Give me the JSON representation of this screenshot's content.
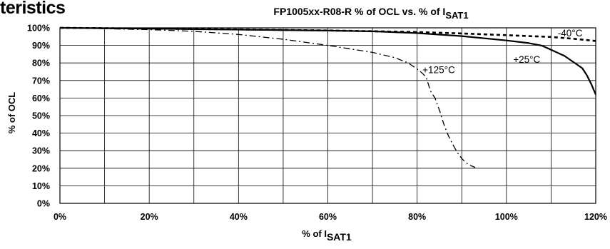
{
  "page": {
    "heading": "teristics"
  },
  "chart_data": {
    "type": "line",
    "title_main": "FP1005xx-R08-R  % of OCL vs. % of I",
    "title_sub": "SAT1",
    "xlabel_main": "% of I",
    "xlabel_sub": "SAT1",
    "ylabel": "% of OCL",
    "xlim": [
      0,
      120
    ],
    "ylim": [
      0,
      100
    ],
    "x_ticks": [
      {
        "value": 0,
        "label": "0%"
      },
      {
        "value": 20,
        "label": "20%"
      },
      {
        "value": 40,
        "label": "40%"
      },
      {
        "value": 60,
        "label": "60%"
      },
      {
        "value": 80,
        "label": "80%"
      },
      {
        "value": 100,
        "label": "100%"
      },
      {
        "value": 120,
        "label": "120%"
      }
    ],
    "x_gridlines": [
      0,
      10,
      20,
      30,
      40,
      50,
      60,
      70,
      80,
      90,
      100,
      110,
      120
    ],
    "y_ticks": [
      {
        "value": 0,
        "label": "0%"
      },
      {
        "value": 10,
        "label": "10%"
      },
      {
        "value": 20,
        "label": "20%"
      },
      {
        "value": 30,
        "label": "30%"
      },
      {
        "value": 40,
        "label": "40%"
      },
      {
        "value": 50,
        "label": "50%"
      },
      {
        "value": 60,
        "label": "60%"
      },
      {
        "value": 70,
        "label": "70%"
      },
      {
        "value": 80,
        "label": "80%"
      },
      {
        "value": 90,
        "label": "90%"
      },
      {
        "value": 100,
        "label": "100%"
      }
    ],
    "grid": true,
    "series": [
      {
        "name": "-40°C",
        "style": "dotted-heavy",
        "points": [
          [
            0,
            100
          ],
          [
            20,
            99.6
          ],
          [
            40,
            99.1
          ],
          [
            60,
            98.5
          ],
          [
            80,
            97.6
          ],
          [
            90,
            96.8
          ],
          [
            100,
            95.8
          ],
          [
            110,
            94.8
          ],
          [
            115,
            93.8
          ],
          [
            120,
            92.5
          ]
        ],
        "label_at": [
          111.5,
          97
        ]
      },
      {
        "name": "+25°C",
        "style": "solid",
        "points": [
          [
            0,
            100
          ],
          [
            20,
            99.5
          ],
          [
            40,
            99.0
          ],
          [
            60,
            98.4
          ],
          [
            70,
            98.0
          ],
          [
            80,
            97.0
          ],
          [
            90,
            95.3
          ],
          [
            100,
            92.8
          ],
          [
            105,
            91.3
          ],
          [
            108,
            89.8
          ],
          [
            110,
            87.5
          ],
          [
            113,
            84.0
          ],
          [
            115,
            80.5
          ],
          [
            117,
            77.0
          ],
          [
            118,
            73.0
          ],
          [
            119,
            68.0
          ],
          [
            120,
            62.0
          ]
        ],
        "label_at": [
          101.5,
          82
        ]
      },
      {
        "name": "+125°C",
        "style": "dash-dot",
        "points": [
          [
            0,
            100
          ],
          [
            10,
            99.5
          ],
          [
            20,
            99.0
          ],
          [
            30,
            98.0
          ],
          [
            40,
            96.2
          ],
          [
            50,
            93.5
          ],
          [
            60,
            90.0
          ],
          [
            70,
            86.0
          ],
          [
            75,
            83.0
          ],
          [
            78,
            80.0
          ],
          [
            80,
            76.5
          ],
          [
            81,
            74.5
          ],
          [
            82,
            72.0
          ],
          [
            83,
            64.0
          ],
          [
            84,
            60.0
          ],
          [
            85,
            53.0
          ],
          [
            86,
            45.0
          ],
          [
            87,
            38.5
          ],
          [
            88,
            33.5
          ],
          [
            89,
            29.0
          ],
          [
            90,
            25.5
          ],
          [
            91,
            23.0
          ],
          [
            92,
            21.5
          ],
          [
            93,
            20.5
          ]
        ],
        "label_at": [
          81.2,
          76
        ]
      }
    ]
  }
}
